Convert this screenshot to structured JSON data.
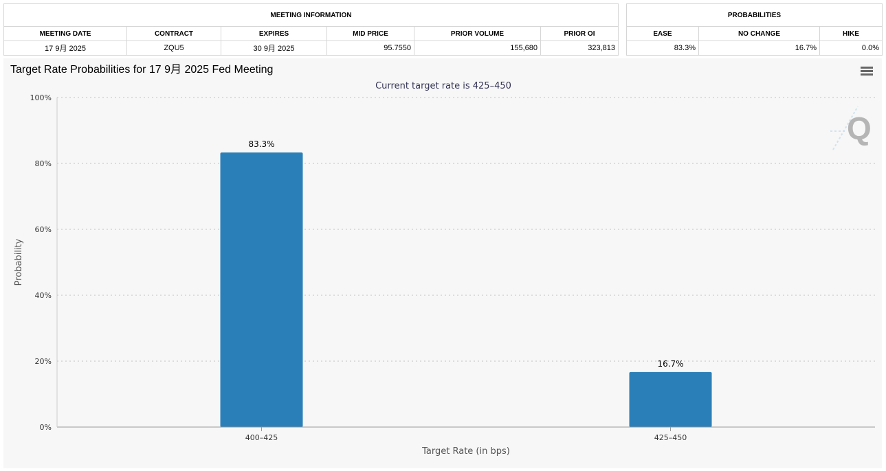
{
  "meeting_info": {
    "title": "MEETING INFORMATION",
    "headers": [
      "MEETING DATE",
      "CONTRACT",
      "EXPIRES",
      "MID PRICE",
      "PRIOR VOLUME",
      "PRIOR OI"
    ],
    "row": [
      "17 9月 2025",
      "ZQU5",
      "30 9月 2025",
      "95.7550",
      "155,680",
      "323,813"
    ]
  },
  "probabilities": {
    "title": "PROBABILITIES",
    "headers": [
      "EASE",
      "NO CHANGE",
      "HIKE"
    ],
    "row": [
      "83.3%",
      "16.7%",
      "0.0%"
    ]
  },
  "chart": {
    "menu_icon": "hamburger-menu-icon",
    "watermark_icon": "q-logo-icon",
    "bar_color": "#2b7fb8"
  },
  "chart_data": {
    "type": "bar",
    "title": "Target Rate Probabilities for 17 9月 2025 Fed Meeting",
    "subtitle": "Current target rate is 425–450",
    "categories": [
      "400–425",
      "425–450"
    ],
    "values": [
      83.3,
      16.7
    ],
    "data_labels": [
      "83.3%",
      "16.7%"
    ],
    "xlabel": "Target Rate (in bps)",
    "ylabel": "Probability",
    "ylim": [
      0,
      100
    ],
    "yticks": [
      0,
      20,
      40,
      60,
      80,
      100
    ],
    "ytick_labels": [
      "0%",
      "20%",
      "40%",
      "60%",
      "80%",
      "100%"
    ],
    "grid": true,
    "legend": "none"
  }
}
